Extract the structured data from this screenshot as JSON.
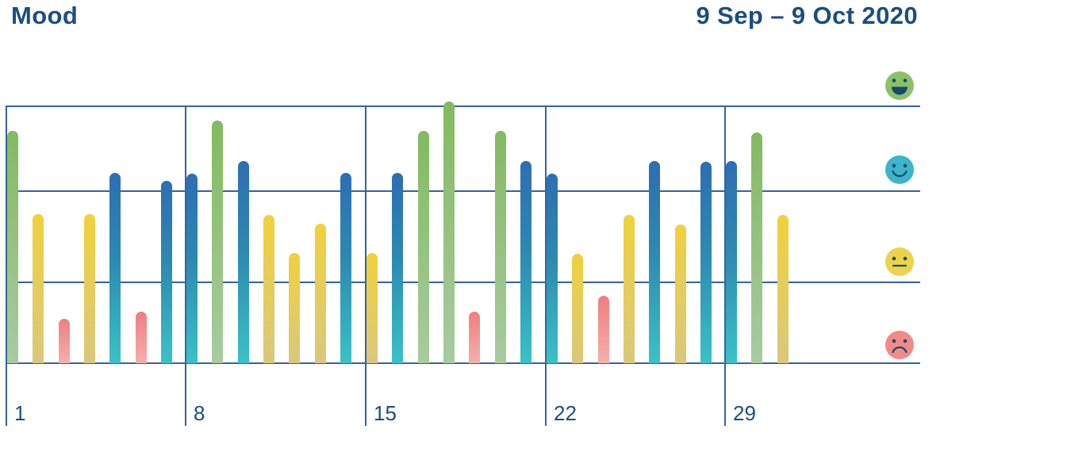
{
  "header": {
    "title": "Mood",
    "date_range": "9 Sep – 9 Oct 2020"
  },
  "axis": {
    "week_labels": [
      "1",
      "8",
      "15",
      "22",
      "29"
    ]
  },
  "legend": [
    {
      "mood": "happy",
      "icon": "happy-face-icon",
      "color": "#8cc168"
    },
    {
      "mood": "good",
      "icon": "smiling-face-icon",
      "color": "#3cb5c8"
    },
    {
      "mood": "neutral",
      "icon": "neutral-face-icon",
      "color": "#edd34b"
    },
    {
      "mood": "sad",
      "icon": "sad-face-icon",
      "color": "#f18b88"
    }
  ],
  "colors": {
    "text": "#1b4e7f",
    "grid": "#35649b",
    "face_features": "#17496f",
    "bar_gradients": {
      "happy": [
        "#83ba60",
        "#a8cba0"
      ],
      "good": [
        "#2d6eb3",
        "#2d89b0",
        "#3ac2c6"
      ],
      "neutral": [
        "#f0d13c",
        "#d9c87c"
      ],
      "sad": [
        "#ef7e80",
        "#f3b0ac"
      ]
    }
  },
  "chart_data": {
    "type": "bar",
    "title": "Mood",
    "period_label": "9 Sep – 9 Oct 2020",
    "x_axis": {
      "tick_labels": [
        "1",
        "8",
        "15",
        "22",
        "29"
      ],
      "unit": "day of month",
      "weeks": 5,
      "days_per_week": 7
    },
    "y_axis": {
      "min": 0,
      "max": 4,
      "gridlines": true,
      "levels": [
        {
          "value": 4,
          "mood": "happy"
        },
        {
          "value": 3,
          "mood": "good"
        },
        {
          "value": 2,
          "mood": "neutral"
        },
        {
          "value": 1,
          "mood": "sad"
        }
      ],
      "legend_position": "right"
    },
    "days": [
      {
        "day": 1,
        "mood": "happy",
        "value": 3.61
      },
      {
        "day": 2,
        "mood": "neutral",
        "value": 2.31
      },
      {
        "day": 3,
        "mood": "sad",
        "value": 0.69
      },
      {
        "day": 4,
        "mood": "neutral",
        "value": 2.31
      },
      {
        "day": 5,
        "mood": "good",
        "value": 2.95
      },
      {
        "day": 6,
        "mood": "sad",
        "value": 0.8
      },
      {
        "day": 7,
        "mood": "good",
        "value": 2.83
      },
      {
        "day": 8,
        "mood": "good",
        "value": 2.94
      },
      {
        "day": 9,
        "mood": "happy",
        "value": 3.77
      },
      {
        "day": 10,
        "mood": "good",
        "value": 3.14
      },
      {
        "day": 11,
        "mood": "neutral",
        "value": 2.3
      },
      {
        "day": 12,
        "mood": "neutral",
        "value": 1.71
      },
      {
        "day": 13,
        "mood": "neutral",
        "value": 2.17
      },
      {
        "day": 14,
        "mood": "good",
        "value": 2.95
      },
      {
        "day": 15,
        "mood": "neutral",
        "value": 1.71
      },
      {
        "day": 16,
        "mood": "good",
        "value": 2.95
      },
      {
        "day": 17,
        "mood": "happy",
        "value": 3.61
      },
      {
        "day": 18,
        "mood": "happy",
        "value": 4.06
      },
      {
        "day": 19,
        "mood": "sad",
        "value": 0.8
      },
      {
        "day": 20,
        "mood": "happy",
        "value": 3.61
      },
      {
        "day": 21,
        "mood": "good",
        "value": 3.14
      },
      {
        "day": 22,
        "mood": "good",
        "value": 2.94
      },
      {
        "day": 23,
        "mood": "neutral",
        "value": 1.7
      },
      {
        "day": 24,
        "mood": "sad",
        "value": 1.05
      },
      {
        "day": 25,
        "mood": "neutral",
        "value": 2.3
      },
      {
        "day": 26,
        "mood": "good",
        "value": 3.14
      },
      {
        "day": 27,
        "mood": "neutral",
        "value": 2.15
      },
      {
        "day": 28,
        "mood": "good",
        "value": 3.13
      },
      {
        "day": 29,
        "mood": "good",
        "value": 3.14
      },
      {
        "day": 30,
        "mood": "happy",
        "value": 3.58
      },
      {
        "day": 31,
        "mood": "neutral",
        "value": 2.3
      }
    ]
  }
}
